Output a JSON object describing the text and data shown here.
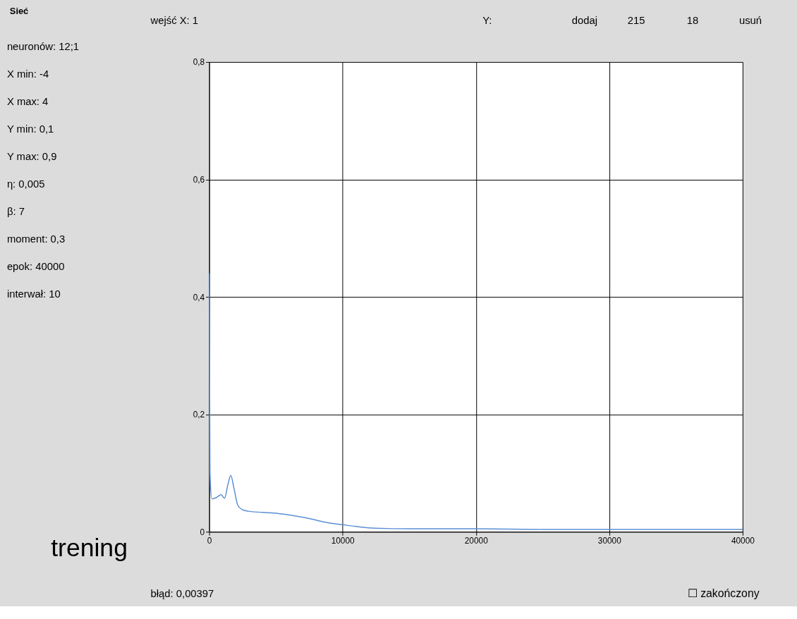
{
  "chart_data": {
    "type": "line",
    "x": [
      0,
      60,
      200,
      500,
      900,
      1150,
      1400,
      1620,
      1850,
      2150,
      2460,
      2930,
      4000,
      5200,
      6200,
      7200,
      8150,
      9000,
      10000,
      11000,
      12500,
      15100,
      20000,
      25000,
      30000,
      35000,
      40000
    ],
    "series": [
      {
        "color": "#5b8fd6",
        "values": [
          0.44,
          0.1,
          0.056,
          0.058,
          0.063,
          0.057,
          0.08,
          0.096,
          0.075,
          0.045,
          0.038,
          0.035,
          0.033,
          0.031,
          0.028,
          0.024,
          0.019,
          0.015,
          0.012,
          0.009,
          0.006,
          0.005,
          0.005,
          0.004,
          0.004,
          0.004,
          0.004
        ]
      }
    ],
    "xlim": [
      0,
      40000
    ],
    "xticks": [
      0,
      10000,
      20000,
      30000,
      40000
    ],
    "ylim": [
      0,
      0.8
    ],
    "yticks": [
      {
        "value": 0,
        "label": "0"
      },
      {
        "value": 0.2,
        "label": "0,2"
      },
      {
        "value": 0.4,
        "label": "0,4"
      },
      {
        "value": 0.6,
        "label": "0,6"
      },
      {
        "value": 0.8,
        "label": "0,8"
      }
    ],
    "grid": true,
    "line_style": "solid",
    "marker": "none",
    "annotations": [
      "Sieć",
      "wejść X:   1",
      "Y:",
      "dodaj",
      "215",
      "18",
      "usuń",
      "neuronów: 12;1",
      "X min: -4",
      "X max: 4",
      "Y min: 0,1",
      "Y max: 0,9",
      "η: 0,005",
      "β: 7",
      "moment: 0,3",
      "epok: 40000",
      "interwał: 10",
      "trening",
      "błąd:  0,00397",
      "☐ zakończony"
    ]
  }
}
